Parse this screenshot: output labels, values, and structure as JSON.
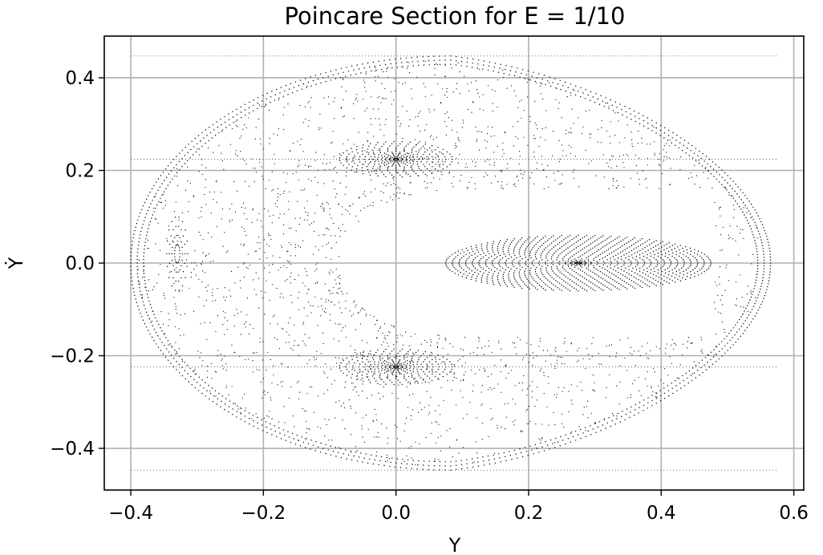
{
  "chart_data": {
    "type": "scatter",
    "title": "Poincare Section for E = 1/10",
    "xlabel": "Y",
    "ylabel": "Ẏ",
    "xlim": [
      -0.44,
      0.615
    ],
    "ylim": [
      -0.49,
      0.49
    ],
    "grid": true,
    "x_ticks": [
      -0.4,
      -0.2,
      0.0,
      0.2,
      0.4,
      0.6
    ],
    "x_tick_labels": [
      "−0.4",
      "−0.2",
      "0.0",
      "0.2",
      "0.4",
      "0.6"
    ],
    "y_ticks": [
      -0.4,
      -0.2,
      0.0,
      0.2,
      0.4
    ],
    "y_tick_labels": [
      "−0.4",
      "−0.2",
      "0.0",
      "0.2",
      "0.4"
    ],
    "energy_boundary_dotted_y": [
      0.447,
      0.224,
      -0.224,
      -0.447
    ],
    "color": "#000000",
    "orbit_families": [
      {
        "center": [
          0.275,
          0.0
        ],
        "radii_x": [
          0.005,
          0.012,
          0.02,
          0.03,
          0.04,
          0.05,
          0.06,
          0.07,
          0.08,
          0.09,
          0.1,
          0.11,
          0.12,
          0.13,
          0.14,
          0.15,
          0.16,
          0.17,
          0.18,
          0.19,
          0.2
        ],
        "ratio_y": 0.3
      },
      {
        "center": [
          0.0,
          0.224
        ],
        "radii_x": [
          0.004,
          0.01,
          0.016,
          0.022,
          0.028,
          0.034,
          0.04,
          0.048,
          0.056,
          0.065,
          0.075,
          0.085
        ],
        "ratio_y": 0.45
      },
      {
        "center": [
          0.0,
          -0.224
        ],
        "radii_x": [
          0.004,
          0.01,
          0.016,
          0.022,
          0.028,
          0.034,
          0.04,
          0.048,
          0.056,
          0.065,
          0.075,
          0.085
        ],
        "ratio_y": 0.45
      },
      {
        "center": [
          -0.33,
          0.02
        ],
        "radii_x": [
          0.004,
          0.008,
          0.012,
          0.016
        ],
        "ratio_y": 5.0
      }
    ],
    "separatrix_region": {
      "left_x": -0.4,
      "right_x": 0.565,
      "top_y": 0.447,
      "bottom_y": -0.447
    }
  }
}
